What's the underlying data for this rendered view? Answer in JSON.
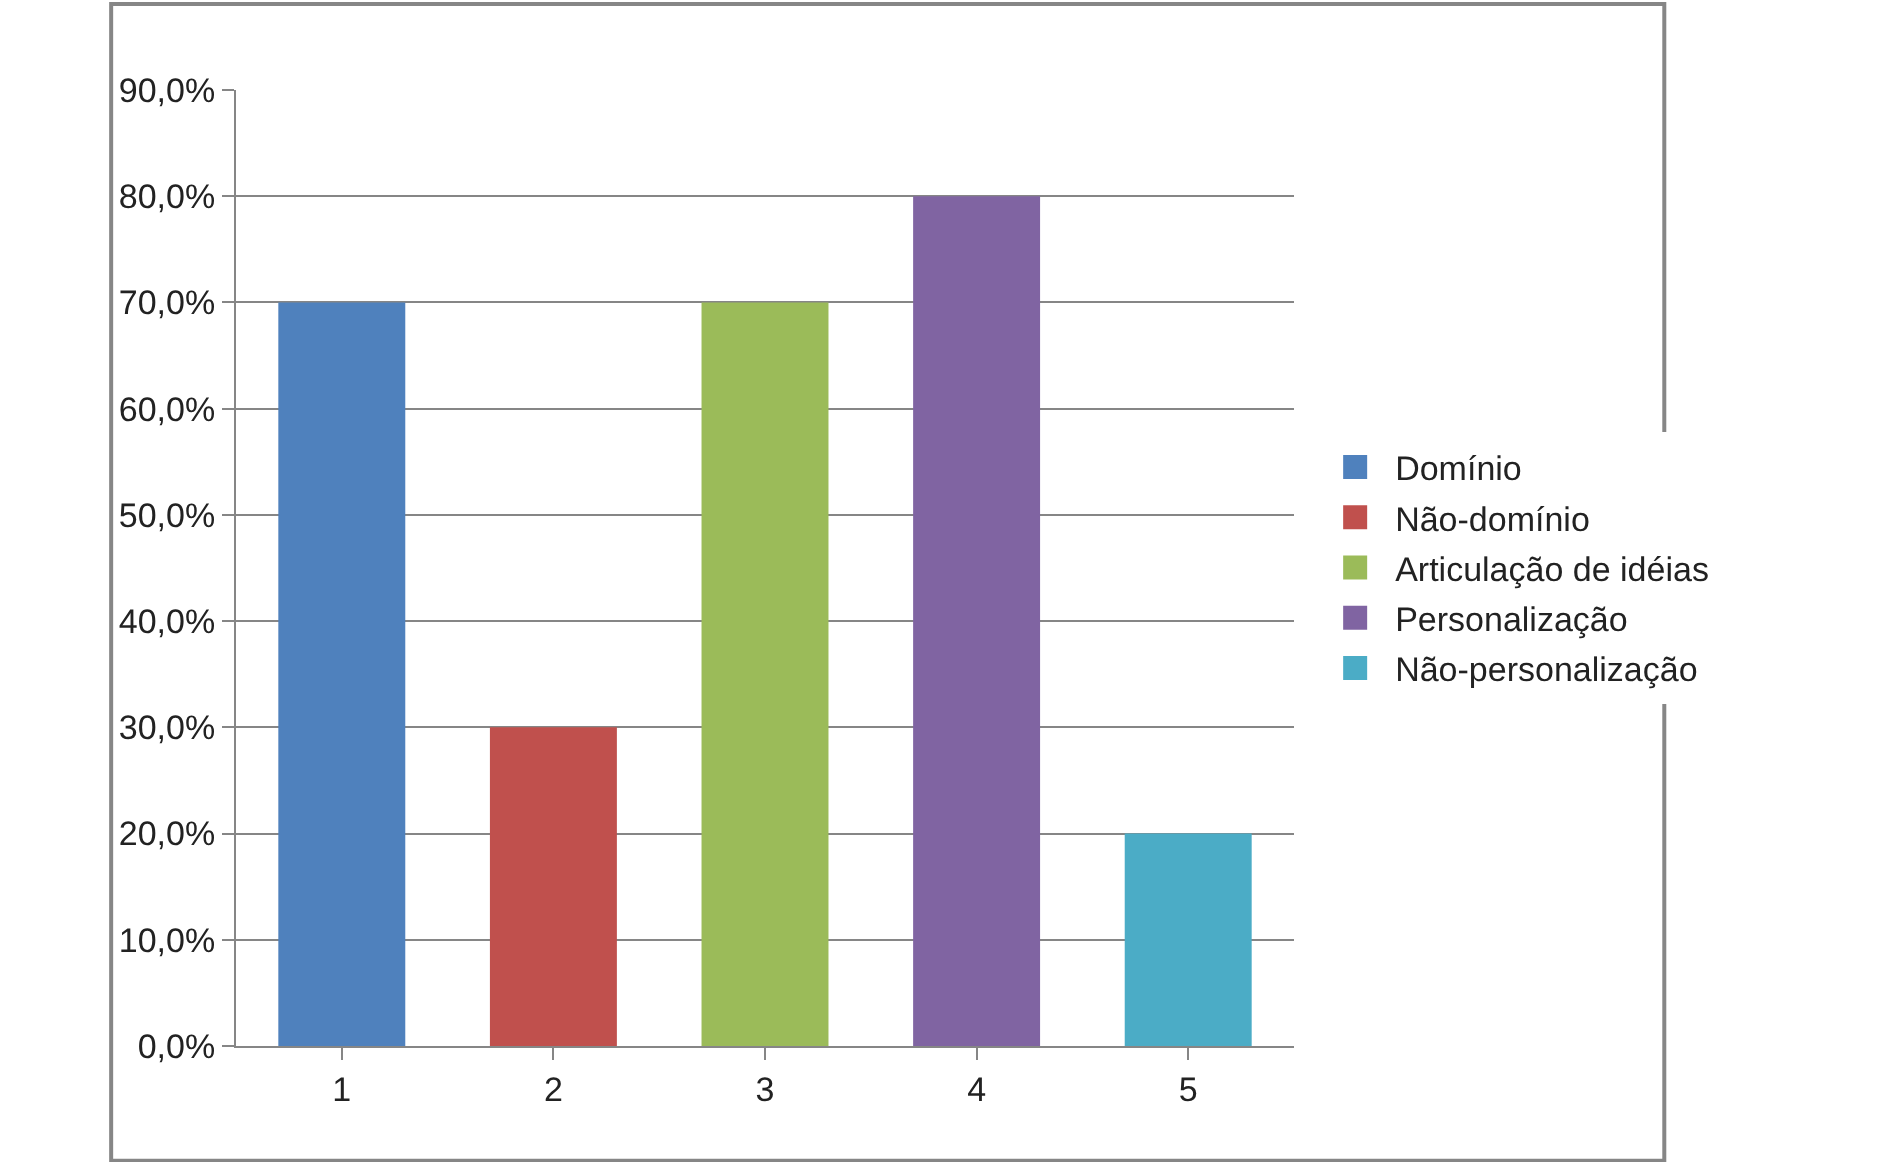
{
  "chart_data": {
    "type": "bar",
    "categories": [
      "1",
      "2",
      "3",
      "4",
      "5"
    ],
    "series": [
      {
        "name": "Domínio",
        "color": "#4f81bd",
        "values": [
          70,
          null,
          null,
          null,
          null
        ]
      },
      {
        "name": "Não-domínio",
        "color": "#c0504d",
        "values": [
          null,
          30,
          null,
          null,
          null
        ]
      },
      {
        "name": "Articulação de idéias",
        "color": "#9bbb59",
        "values": [
          null,
          null,
          70,
          null,
          null
        ]
      },
      {
        "name": "Personalização",
        "color": "#8064a2",
        "values": [
          null,
          null,
          null,
          80,
          null
        ]
      },
      {
        "name": "Não-personalização",
        "color": "#4bacc6",
        "values": [
          null,
          null,
          null,
          null,
          20
        ]
      }
    ],
    "ylim": [
      0,
      90
    ],
    "yticks": [
      {
        "value": 0,
        "label": "0,0%"
      },
      {
        "value": 10,
        "label": "10,0%"
      },
      {
        "value": 20,
        "label": "20,0%"
      },
      {
        "value": 30,
        "label": "30,0%"
      },
      {
        "value": 40,
        "label": "40,0%"
      },
      {
        "value": 50,
        "label": "50,0%"
      },
      {
        "value": 60,
        "label": "60,0%"
      },
      {
        "value": 70,
        "label": "70,0%"
      },
      {
        "value": 80,
        "label": "80,0%"
      },
      {
        "value": 90,
        "label": "90,0%"
      }
    ],
    "grid": "y",
    "legend": "right"
  }
}
